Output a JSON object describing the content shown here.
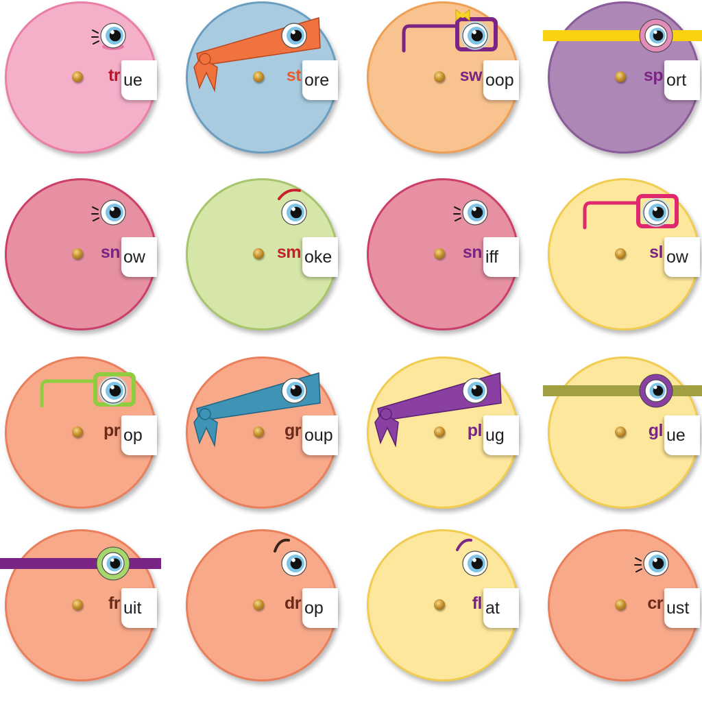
{
  "wheels": [
    {
      "onset": "tr",
      "rime": "ue",
      "fill": "#f4afc9",
      "rim": "#e97fa6",
      "onset_color": "#b0182c",
      "deco": "lashes-pink"
    },
    {
      "onset": "st",
      "rime": "ore",
      "fill": "#a9cbe0",
      "rim": "#6b9ec0",
      "onset_color": "#ea5c2e",
      "deco": "bandana-orange"
    },
    {
      "onset": "sw",
      "rime": "oop",
      "fill": "#f8c38e",
      "rim": "#ef9e56",
      "onset_color": "#7a2584",
      "deco": "glasses-purple-bow"
    },
    {
      "onset": "sp",
      "rime": "ort",
      "fill": "#ad87b6",
      "rim": "#8a5b98",
      "onset_color": "#7a2584",
      "deco": "band-yellow"
    },
    {
      "onset": "sn",
      "rime": "ow",
      "fill": "#e690a2",
      "rim": "#cc3f68",
      "onset_color": "#7a2584",
      "deco": "lashes"
    },
    {
      "onset": "sm",
      "rime": "oke",
      "fill": "#d6e6a8",
      "rim": "#a7c56c",
      "onset_color": "#c4202e",
      "deco": "brow-red"
    },
    {
      "onset": "sn",
      "rime": "iff",
      "fill": "#e690a2",
      "rim": "#cc3f68",
      "onset_color": "#7a2584",
      "deco": "lashes"
    },
    {
      "onset": "sl",
      "rime": "ow",
      "fill": "#fde79c",
      "rim": "#f0cc50",
      "onset_color": "#7a2584",
      "deco": "glasses-pink"
    },
    {
      "onset": "pr",
      "rime": "op",
      "fill": "#f8a98a",
      "rim": "#ea7f5b",
      "onset_color": "#6b2a1a",
      "deco": "glasses-green"
    },
    {
      "onset": "gr",
      "rime": "oup",
      "fill": "#f8a98a",
      "rim": "#ea7f5b",
      "onset_color": "#6b2a1a",
      "deco": "bandana-teal"
    },
    {
      "onset": "pl",
      "rime": "ug",
      "fill": "#fde79c",
      "rim": "#f0cc50",
      "onset_color": "#7a2584",
      "deco": "bandana-purple"
    },
    {
      "onset": "gl",
      "rime": "ue",
      "fill": "#fde79c",
      "rim": "#f0cc50",
      "onset_color": "#7a2584",
      "deco": "band-olive"
    },
    {
      "onset": "fr",
      "rime": "uit",
      "fill": "#f8a98a",
      "rim": "#ea7f5b",
      "onset_color": "#6b2a1a",
      "deco": "band-purple"
    },
    {
      "onset": "dr",
      "rime": "op",
      "fill": "#f8a98a",
      "rim": "#ea7f5b",
      "onset_color": "#6b2a1a",
      "deco": "brow-dark"
    },
    {
      "onset": "fl",
      "rime": "at",
      "fill": "#fde79c",
      "rim": "#f0cc50",
      "onset_color": "#7a2584",
      "deco": "brow-purple"
    },
    {
      "onset": "cr",
      "rime": "ust",
      "fill": "#f8a98a",
      "rim": "#ea7f5b",
      "onset_color": "#6b2a1a",
      "deco": "lashes"
    }
  ]
}
